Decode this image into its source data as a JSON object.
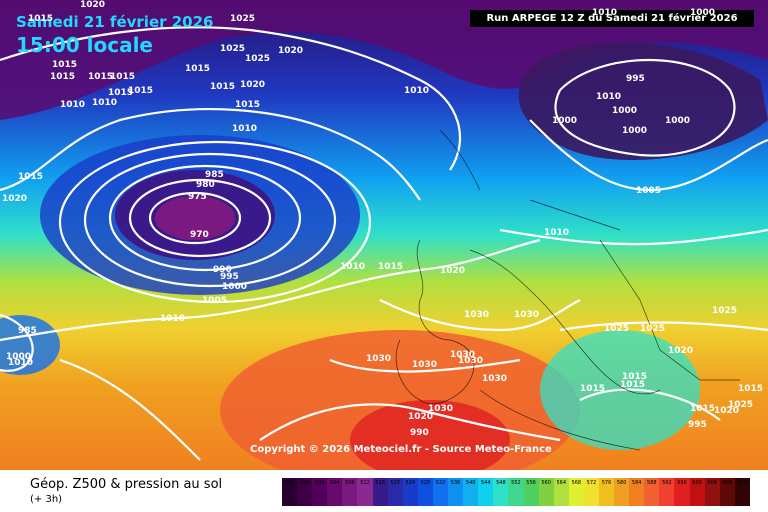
{
  "header": {
    "date": "Samedi 21 février 2026",
    "time": "15:00 locale",
    "run": "Run ARPEGE 12 Z du Samedi 21 février 2026"
  },
  "copyright": "Copyright © 2026 Meteociel.fr - Source Meteo-France",
  "footer": {
    "title": "Géop. Z500 & pression au sol",
    "subtitle": "(+ 3h)"
  },
  "legend": {
    "values": [
      "492",
      "496",
      "500",
      "504",
      "508",
      "512",
      "516",
      "520",
      "524",
      "528",
      "532",
      "536",
      "540",
      "544",
      "548",
      "552",
      "556",
      "560",
      "564",
      "568",
      "572",
      "576",
      "580",
      "584",
      "588",
      "592",
      "596",
      "600",
      "604",
      "608",
      "612"
    ],
    "colors": [
      "#2a0030",
      "#3e0045",
      "#52005a",
      "#660a6e",
      "#7a1a80",
      "#8a2a90",
      "#3a1a8a",
      "#2a2aa8",
      "#1a3ac8",
      "#1050e0",
      "#1070f0",
      "#1090f0",
      "#10b0f0",
      "#10d0f0",
      "#30e0c8",
      "#40d890",
      "#50d060",
      "#80d040",
      "#b0e040",
      "#e0f030",
      "#f0e030",
      "#f0c020",
      "#f0a020",
      "#f08020",
      "#f06030",
      "#f04030",
      "#e02020",
      "#c01010",
      "#901010",
      "#600808",
      "#300404"
    ]
  },
  "isobar_labels": [
    "1015",
    "1020",
    "1025",
    "1015",
    "1015",
    "1015",
    "1010",
    "1015",
    "1010",
    "1015",
    "1015",
    "1025",
    "1025",
    "1020",
    "1020",
    "1015",
    "1015",
    "1015",
    "1010",
    "1010",
    "1010",
    "995",
    "1010",
    "1000",
    "1000",
    "1000",
    "1000",
    "1000",
    "1015",
    "1020",
    "985",
    "975",
    "980",
    "970",
    "990",
    "995",
    "1000",
    "1005",
    "1010",
    "1010",
    "1015",
    "1020",
    "1005",
    "1010",
    "1025",
    "1025",
    "1025",
    "1020",
    "1030",
    "1030",
    "1030",
    "1030",
    "1030",
    "1030",
    "1030",
    "1030",
    "1020",
    "1015",
    "1015",
    "1015",
    "1015",
    "1015",
    "1020",
    "1025",
    "995",
    "990",
    "985",
    "1000",
    "1010"
  ]
}
